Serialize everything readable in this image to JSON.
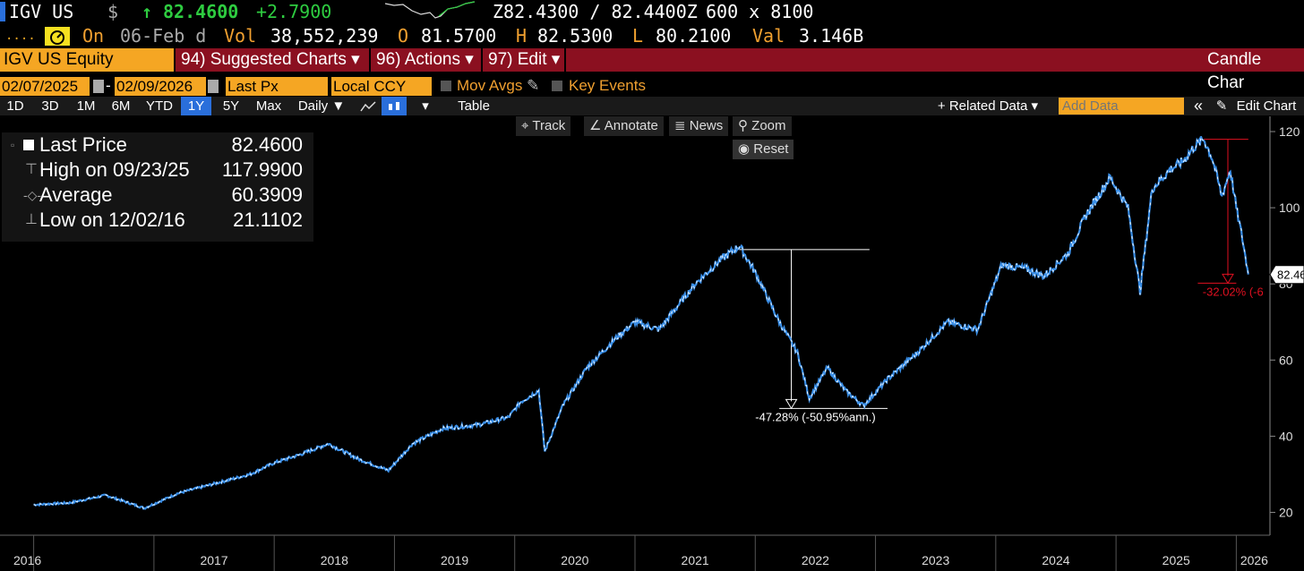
{
  "header": {
    "ticker": "IGV US",
    "currency_symbol": "$",
    "up_arrow": "↑",
    "last": "82.4600",
    "change": "+2.7900",
    "bid_ask": "Z82.4300 / 82.4400Z",
    "size": "600 x 8100",
    "dots": "....",
    "on_label": "On",
    "date": "06-Feb d",
    "vol_label": "Vol",
    "vol": "38,552,239",
    "open_label": "O",
    "open": "81.5700",
    "high_label": "H",
    "high": "82.5300",
    "low_label": "L",
    "low": "80.2100",
    "val_label": "Val",
    "val": "3.146B"
  },
  "menubar": {
    "security": "IGV US Equity",
    "suggested": "94) Suggested Charts",
    "actions": "96) Actions",
    "edit": "97) Edit",
    "dropdown_glyph": "▾",
    "right_title": "Candle Char"
  },
  "controls": {
    "start_date": "02/07/2025",
    "dash": "-",
    "end_date": "02/09/2026",
    "field": "Last Px",
    "currency": "Local CCY",
    "mov_avgs": "Mov Avgs",
    "key_events": "Key Events"
  },
  "toolbar": {
    "periods": [
      "1D",
      "3D",
      "1M",
      "6M",
      "YTD",
      "1Y",
      "5Y",
      "Max"
    ],
    "active_period": "1Y",
    "frequency": "Daily ▼",
    "table": "Table",
    "related": "+ Related Data ▾",
    "add_data_placeholder": "Add Data",
    "collapse": "«",
    "edit_chart": "Edit Chart"
  },
  "chart_tools": {
    "track": "Track",
    "annotate": "Annotate",
    "news": "News",
    "zoom": "Zoom",
    "reset": "Reset"
  },
  "legend": {
    "last_label": "Last Price",
    "last_value": "82.4600",
    "high_label": "High on 09/23/25",
    "high_value": "117.9900",
    "avg_label": "Average",
    "avg_value": "60.3909",
    "low_label": "Low on 12/02/16",
    "low_value": "21.1102"
  },
  "colors": {
    "line": "#3a8fe8",
    "line_highlight": "#ffffff",
    "accent": "#f5a623",
    "menu_red": "#8b1020",
    "drawdown_red": "#e01020"
  },
  "chart_data": {
    "type": "line",
    "series": [
      {
        "x": [
          2016.0,
          2016.3,
          2016.6,
          2016.92,
          2017.2,
          2017.5,
          2017.8,
          2018.0,
          2018.2,
          2018.45,
          2018.7,
          2018.95,
          2019.15,
          2019.4,
          2019.7,
          2019.95,
          2020.05,
          2020.2,
          2020.25,
          2020.4,
          2020.6,
          2020.85,
          2021.0,
          2021.2,
          2021.5,
          2021.7,
          2021.87,
          2022.0,
          2022.2,
          2022.35,
          2022.45,
          2022.6,
          2022.75,
          2022.9,
          2023.1,
          2023.35,
          2023.6,
          2023.85,
          2024.05,
          2024.25,
          2024.4,
          2024.6,
          2024.75,
          2024.95,
          2025.1,
          2025.2,
          2025.3,
          2025.45,
          2025.55,
          2025.65,
          2025.73,
          2025.8,
          2025.88,
          2025.95,
          2026.0,
          2026.05,
          2026.1
        ],
        "y": [
          22,
          22.5,
          24.5,
          21.1,
          25,
          27.5,
          30,
          33,
          35,
          38,
          34,
          31,
          38,
          42,
          43,
          45,
          49,
          52,
          36,
          48,
          58,
          66,
          70,
          68,
          80,
          86,
          90,
          83,
          70,
          62,
          50,
          58,
          52,
          48,
          55,
          62,
          70,
          68,
          85,
          84,
          82,
          88,
          98,
          108,
          100,
          78,
          105,
          110,
          112,
          116,
          118,
          113,
          103,
          110,
          100,
          92,
          82.46
        ]
      }
    ],
    "x_ticks": [
      "2016",
      "2017",
      "2018",
      "2019",
      "2020",
      "2021",
      "2022",
      "2023",
      "2024",
      "2025",
      "2026"
    ],
    "y_ticks": [
      20,
      40,
      60,
      80,
      100,
      120
    ],
    "ylim": [
      14,
      124
    ],
    "last_price_label": "82.46",
    "annotations": [
      {
        "from_x": 2021.87,
        "from_y": 89,
        "to_x": 2022.45,
        "to_y": 47.3,
        "label": "-47.28% (-50.95%ann.)"
      },
      {
        "from_x": 2025.73,
        "from_y": 117.99,
        "to_x": 2026.05,
        "to_y": 80.2,
        "label": "-32.02% (-6"
      }
    ]
  }
}
